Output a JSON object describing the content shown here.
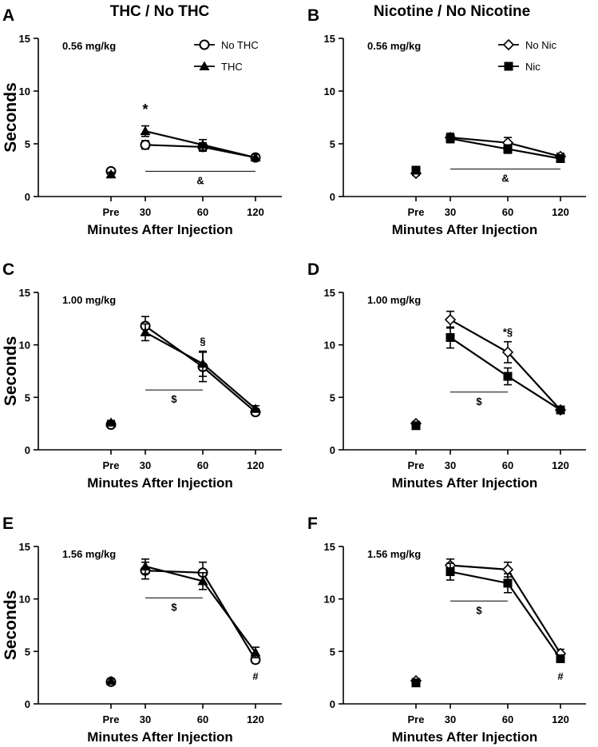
{
  "column_titles": [
    "THC / No THC",
    "Nicotine / No Nicotine"
  ],
  "chart_data": [
    {
      "panel": "A",
      "type": "line",
      "dose_label": "0.56 mg/kg",
      "categories": [
        "Pre",
        "30",
        "60",
        "120"
      ],
      "xlabel": "Minutes After Injection",
      "ylabel": "Seconds",
      "ylim": [
        0,
        15
      ],
      "yticks": [
        0,
        5,
        10,
        15
      ],
      "legend": "top-right",
      "series": [
        {
          "name": "No THC",
          "marker": "circle-open",
          "values": [
            2.4,
            4.9,
            4.7,
            3.7
          ],
          "errors": [
            0.2,
            0.4,
            0.4,
            0.3
          ]
        },
        {
          "name": "THC",
          "marker": "triangle-filled",
          "values": [
            2.1,
            6.2,
            4.9,
            3.7
          ],
          "errors": [
            0.2,
            0.5,
            0.5,
            0.3
          ]
        }
      ],
      "annotations": [
        {
          "text": "*",
          "x": "30",
          "y": 7.8,
          "size": "big"
        },
        {
          "text": "&",
          "line": [
            "30",
            "120"
          ],
          "y": 2.4
        }
      ]
    },
    {
      "panel": "B",
      "type": "line",
      "dose_label": "0.56 mg/kg",
      "categories": [
        "Pre",
        "30",
        "60",
        "120"
      ],
      "xlabel": "Minutes After Injection",
      "ylabel": "",
      "ylim": [
        0,
        15
      ],
      "yticks": [
        0,
        5,
        10,
        15
      ],
      "legend": "top-right",
      "series": [
        {
          "name": "No Nic",
          "marker": "diamond-open",
          "values": [
            2.2,
            5.6,
            5.1,
            3.8
          ],
          "errors": [
            0.2,
            0.4,
            0.5,
            0.3
          ]
        },
        {
          "name": "Nic",
          "marker": "square-filled",
          "values": [
            2.5,
            5.5,
            4.5,
            3.6
          ],
          "errors": [
            0.2,
            0.4,
            0.4,
            0.3
          ]
        }
      ],
      "annotations": [
        {
          "text": "&",
          "line": [
            "30",
            "120"
          ],
          "y": 2.6
        }
      ]
    },
    {
      "panel": "C",
      "type": "line",
      "dose_label": "1.00 mg/kg",
      "categories": [
        "Pre",
        "30",
        "60",
        "120"
      ],
      "xlabel": "Minutes After Injection",
      "ylabel": "Seconds",
      "ylim": [
        0,
        15
      ],
      "yticks": [
        0,
        5,
        10,
        15
      ],
      "legend": "none",
      "series": [
        {
          "name": "No THC",
          "marker": "circle-open",
          "values": [
            2.4,
            11.8,
            7.9,
            3.6
          ],
          "errors": [
            0.2,
            0.9,
            1.4,
            0.3
          ]
        },
        {
          "name": "THC",
          "marker": "triangle-filled",
          "values": [
            2.6,
            11.2,
            8.2,
            3.9
          ],
          "errors": [
            0.2,
            0.8,
            1.2,
            0.3
          ]
        }
      ],
      "annotations": [
        {
          "text": "§",
          "x": "60",
          "y": 10.0,
          "size": "small"
        },
        {
          "text": "$",
          "line": [
            "30",
            "60"
          ],
          "y": 5.7
        }
      ]
    },
    {
      "panel": "D",
      "type": "line",
      "dose_label": "1.00 mg/kg",
      "categories": [
        "Pre",
        "30",
        "60",
        "120"
      ],
      "xlabel": "Minutes After Injection",
      "ylabel": "",
      "ylim": [
        0,
        15
      ],
      "yticks": [
        0,
        5,
        10,
        15
      ],
      "legend": "none",
      "series": [
        {
          "name": "No Nic",
          "marker": "diamond-open",
          "values": [
            2.5,
            12.4,
            9.3,
            3.8
          ],
          "errors": [
            0.2,
            0.8,
            1.0,
            0.3
          ]
        },
        {
          "name": "Nic",
          "marker": "square-filled",
          "values": [
            2.3,
            10.7,
            7.0,
            3.8
          ],
          "errors": [
            0.2,
            1.0,
            0.8,
            0.3
          ]
        }
      ],
      "annotations": [
        {
          "text": "*§",
          "x": "60",
          "y": 10.9,
          "size": "mixed"
        },
        {
          "text": "$",
          "line": [
            "30",
            "60"
          ],
          "y": 5.5
        }
      ]
    },
    {
      "panel": "E",
      "type": "line",
      "dose_label": "1.56 mg/kg",
      "categories": [
        "Pre",
        "30",
        "60",
        "120"
      ],
      "xlabel": "Minutes After Injection",
      "ylabel": "Seconds",
      "ylim": [
        0,
        15
      ],
      "yticks": [
        0,
        5,
        10,
        15
      ],
      "legend": "none",
      "series": [
        {
          "name": "No THC",
          "marker": "circle-open",
          "values": [
            2.1,
            12.7,
            12.5,
            4.2
          ],
          "errors": [
            0.2,
            0.8,
            1.0,
            0.3
          ]
        },
        {
          "name": "THC",
          "marker": "triangle-filled",
          "values": [
            2.2,
            13.1,
            11.7,
            4.9
          ],
          "errors": [
            0.2,
            0.7,
            0.8,
            0.5
          ]
        }
      ],
      "annotations": [
        {
          "text": "$",
          "line": [
            "30",
            "60"
          ],
          "y": 10.1
        },
        {
          "text": "#",
          "x": "120",
          "y": 2.3,
          "size": "small"
        }
      ]
    },
    {
      "panel": "F",
      "type": "line",
      "dose_label": "1.56 mg/kg",
      "categories": [
        "Pre",
        "30",
        "60",
        "120"
      ],
      "xlabel": "Minutes After Injection",
      "ylabel": "",
      "ylim": [
        0,
        15
      ],
      "yticks": [
        0,
        5,
        10,
        15
      ],
      "legend": "none",
      "series": [
        {
          "name": "No Nic",
          "marker": "diamond-open",
          "values": [
            2.2,
            13.2,
            12.8,
            4.8
          ],
          "errors": [
            0.2,
            0.6,
            0.7,
            0.4
          ]
        },
        {
          "name": "Nic",
          "marker": "square-filled",
          "values": [
            2.0,
            12.6,
            11.5,
            4.3
          ],
          "errors": [
            0.2,
            0.8,
            0.9,
            0.3
          ]
        }
      ],
      "annotations": [
        {
          "text": "$",
          "line": [
            "30",
            "60"
          ],
          "y": 9.8
        },
        {
          "text": "#",
          "x": "120",
          "y": 2.3,
          "size": "small"
        }
      ]
    }
  ]
}
